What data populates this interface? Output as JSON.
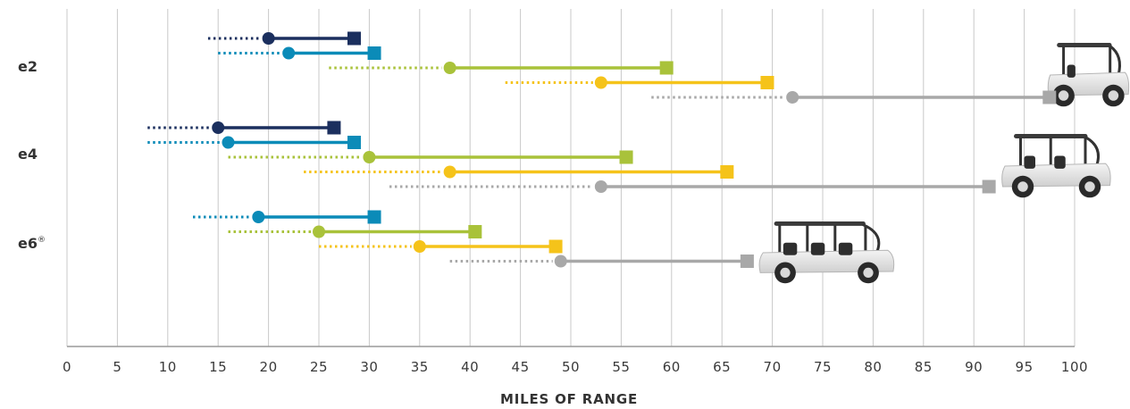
{
  "chart_data": {
    "type": "range-dumbbell",
    "xlabel": "MILES OF RANGE",
    "xlim": [
      0,
      100
    ],
    "xticks": [
      0,
      5,
      10,
      15,
      20,
      25,
      30,
      35,
      40,
      45,
      50,
      55,
      60,
      65,
      70,
      75,
      80,
      85,
      90,
      95,
      100
    ],
    "xtick_labels": [
      "0",
      "5",
      "10",
      "15",
      "20",
      "25",
      "30",
      "35",
      "40",
      "45",
      "50",
      "55",
      "60",
      "65",
      "70",
      "75",
      "80",
      "85",
      "90",
      "95",
      "100"
    ],
    "grid": true,
    "legend": "none",
    "series_colors": [
      "#1b2f5e",
      "#0b8bb8",
      "#a9c23a",
      "#f5c31a",
      "#a8a8a8"
    ],
    "groups": [
      {
        "label": "e2",
        "label_sup": "",
        "vehicle_icon": "two-seat-cart-image",
        "ranges": [
          {
            "color_index": 0,
            "dotted_from": 14,
            "min": 20,
            "max": 28.5
          },
          {
            "color_index": 1,
            "dotted_from": 15,
            "min": 22,
            "max": 30.5
          },
          {
            "color_index": 2,
            "dotted_from": 26,
            "min": 38,
            "max": 59.5
          },
          {
            "color_index": 3,
            "dotted_from": 43.5,
            "min": 53,
            "max": 69.5
          },
          {
            "color_index": 4,
            "dotted_from": 58,
            "min": 72,
            "max": 97.5
          }
        ]
      },
      {
        "label": "e4",
        "label_sup": "",
        "vehicle_icon": "four-seat-cart-image",
        "ranges": [
          {
            "color_index": 0,
            "dotted_from": 8,
            "min": 15,
            "max": 26.5
          },
          {
            "color_index": 1,
            "dotted_from": 8,
            "min": 16,
            "max": 28.5
          },
          {
            "color_index": 2,
            "dotted_from": 16,
            "min": 30,
            "max": 55.5
          },
          {
            "color_index": 3,
            "dotted_from": 23.5,
            "min": 38,
            "max": 65.5
          },
          {
            "color_index": 4,
            "dotted_from": 32,
            "min": 53,
            "max": 91.5
          }
        ]
      },
      {
        "label": "e6",
        "label_sup": "®",
        "vehicle_icon": "six-seat-cart-image",
        "ranges": [
          {
            "color_index": 1,
            "dotted_from": 12.5,
            "min": 19,
            "max": 30.5
          },
          {
            "color_index": 2,
            "dotted_from": 16,
            "min": 25,
            "max": 40.5
          },
          {
            "color_index": 3,
            "dotted_from": 25,
            "min": 35,
            "max": 48.5
          },
          {
            "color_index": 4,
            "dotted_from": 38,
            "min": 49,
            "max": 67.5
          }
        ]
      }
    ]
  }
}
